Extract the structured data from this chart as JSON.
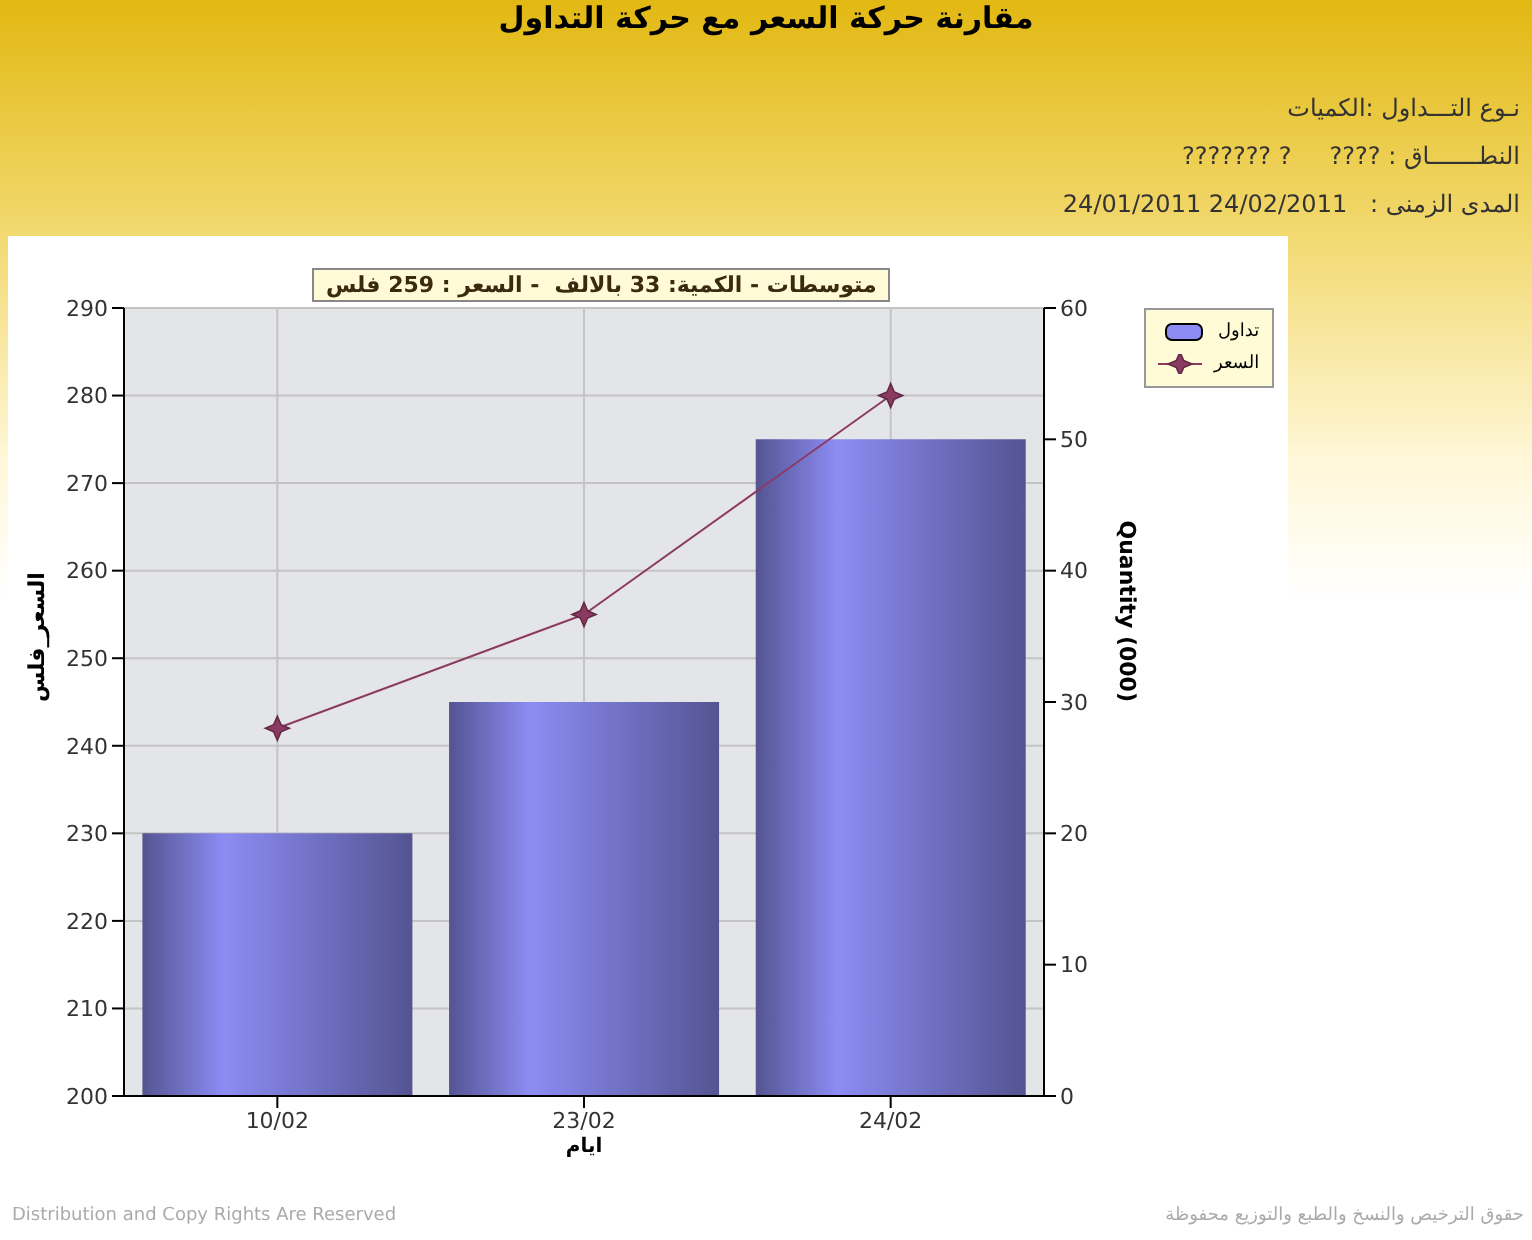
{
  "chart_data": {
    "type": "bar",
    "title": "مقارنة حركة السعر مع حركة التداول",
    "annotations": [
      "نـوع التـــداول :الكميات",
      "النطـــــــاق : ????     ? ???????",
      "المدى الزمنى :   24/02/2011 24/01/2011",
      "متوسطات - الكمية: 33 بالالف  - السعر : 259 فلس",
      "Distribution and Copy Rights Are Reserved",
      "حقوق الترخيص والنسخ والطبع والتوزيع محفوظة"
    ],
    "categories": [
      "10/02",
      "23/02",
      "24/02"
    ],
    "xlabel": "ايام",
    "ylabel": "السعر_فلس",
    "y2label": "Quantity (000)",
    "series": [
      {
        "name": "تداول",
        "axis": "y2",
        "color": "#8c8cf4",
        "values": [
          20,
          30,
          50
        ]
      },
      {
        "name": "السعر",
        "type": "line",
        "color": "#8b3a62",
        "marker": "star",
        "values": [
          242,
          255,
          280
        ]
      }
    ],
    "ylim": [
      200,
      290
    ],
    "yticks": [
      200,
      210,
      220,
      230,
      240,
      250,
      260,
      270,
      280,
      290
    ],
    "y2lim": [
      0,
      60
    ],
    "y2ticks": [
      0,
      10,
      20,
      30,
      40,
      50,
      60
    ],
    "grid": true,
    "legend": "top right"
  }
}
